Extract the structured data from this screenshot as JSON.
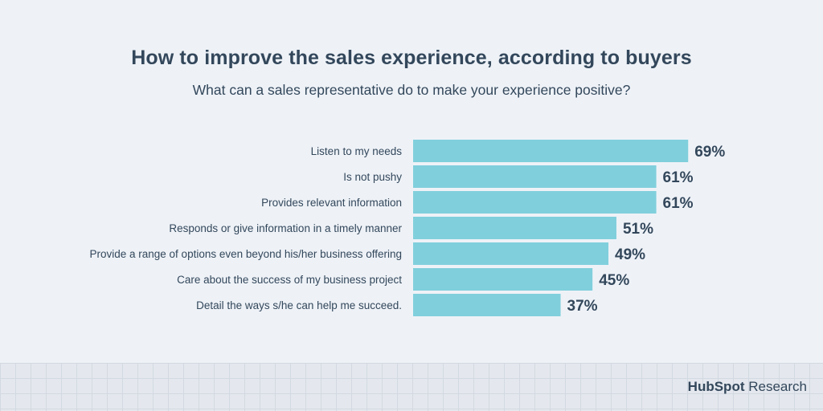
{
  "chart_data": {
    "type": "bar",
    "orientation": "horizontal",
    "title": "How to improve the sales experience, according to buyers",
    "subtitle": "What can a sales representative do to make your experience positive?",
    "categories": [
      "Listen to my needs",
      "Is not pushy",
      "Provides relevant information",
      "Responds or give information in a timely manner",
      "Provide a range of options even beyond his/her business offering",
      "Care about the success of my business project",
      "Detail the ways s/he can help me succeed."
    ],
    "values": [
      69,
      61,
      61,
      51,
      49,
      45,
      37
    ],
    "value_labels": [
      "69%",
      "61%",
      "61%",
      "51%",
      "49%",
      "45%",
      "37%"
    ],
    "xlim": [
      0,
      100
    ],
    "bar_color": "#80cfdc",
    "text_color": "#33475b",
    "grid": false,
    "legend": "none"
  },
  "brand": {
    "name": "HubSpot",
    "suffix": "Research",
    "accent": "#ff7a59"
  }
}
